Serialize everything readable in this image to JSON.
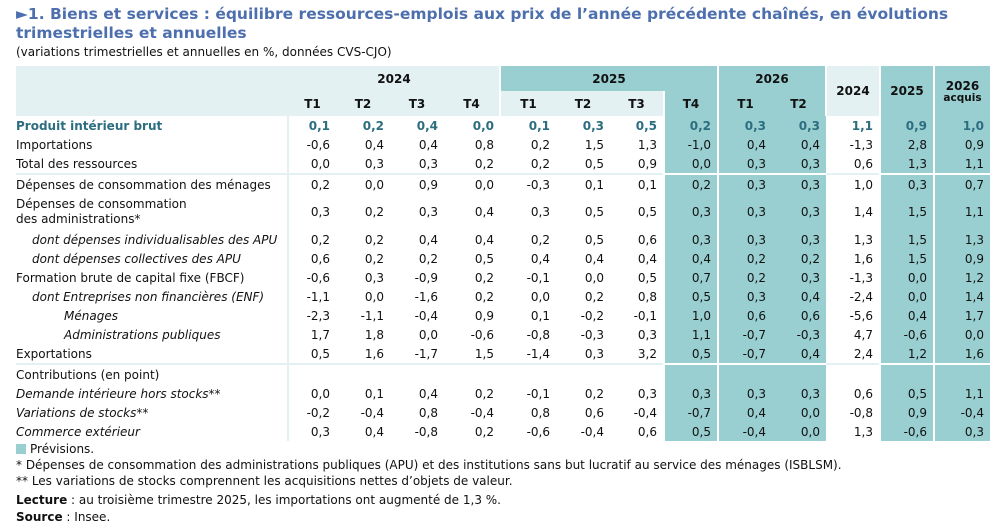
{
  "title": "►1. Biens et services : équilibre ressources-emplois aux prix de l’année précédente chaînés, en évolutions trimestrielles et annuelles",
  "subtitle": "(variations trimestrielles et annuelles en %, données CVS-CJO)",
  "colors": {
    "forecast": "#99cfd1",
    "header": "#e3f1f2",
    "title": "#4d6fae",
    "pib": "#2c6e80"
  },
  "header": {
    "y2024": "2024",
    "y2025": "2025",
    "y2026": "2026",
    "quarters": [
      "T1",
      "T2",
      "T3",
      "T4",
      "T1",
      "T2",
      "T3",
      "T4",
      "T1",
      "T2"
    ],
    "annual": [
      "2024",
      "2025",
      "2026"
    ],
    "acquis": "acquis"
  },
  "rows": [
    {
      "label": "Produit intérieur brut",
      "values": [
        "0,1",
        "0,2",
        "0,4",
        "0,0",
        "0,1",
        "0,3",
        "0,5",
        "0,2",
        "0,3",
        "0,3",
        "1,1",
        "0,9",
        "1,0"
      ]
    },
    {
      "label": "Importations",
      "values": [
        "-0,6",
        "0,4",
        "0,4",
        "0,8",
        "0,2",
        "1,5",
        "1,3",
        "-1,0",
        "0,4",
        "0,4",
        "-1,3",
        "2,8",
        "0,9"
      ]
    },
    {
      "label": "Total des ressources",
      "values": [
        "0,0",
        "0,3",
        "0,3",
        "0,2",
        "0,2",
        "0,5",
        "0,9",
        "0,0",
        "0,3",
        "0,3",
        "0,6",
        "1,3",
        "1,1"
      ]
    },
    {
      "label": "Dépenses de consommation des ménages",
      "values": [
        "0,2",
        "0,0",
        "0,9",
        "0,0",
        "-0,3",
        "0,1",
        "0,1",
        "0,2",
        "0,3",
        "0,3",
        "1,0",
        "0,3",
        "0,7"
      ]
    },
    {
      "label": "Dépenses de consommation",
      "label2": "des administrations*",
      "values": [
        "0,3",
        "0,2",
        "0,3",
        "0,4",
        "0,3",
        "0,5",
        "0,5",
        "0,3",
        "0,3",
        "0,3",
        "1,4",
        "1,5",
        "1,1"
      ]
    },
    {
      "label": "dont dépenses individualisables des APU",
      "values": [
        "0,2",
        "0,2",
        "0,4",
        "0,4",
        "0,2",
        "0,5",
        "0,6",
        "0,3",
        "0,3",
        "0,3",
        "1,3",
        "1,5",
        "1,3"
      ]
    },
    {
      "label": "dont dépenses collectives des APU",
      "values": [
        "0,6",
        "0,2",
        "0,2",
        "0,5",
        "0,4",
        "0,4",
        "0,4",
        "0,4",
        "0,2",
        "0,2",
        "1,6",
        "1,5",
        "0,9"
      ]
    },
    {
      "label": "Formation brute de capital fixe (FBCF)",
      "values": [
        "-0,6",
        "0,3",
        "-0,9",
        "0,2",
        "-0,1",
        "0,0",
        "0,5",
        "0,7",
        "0,2",
        "0,3",
        "-1,3",
        "0,0",
        "1,2"
      ]
    },
    {
      "label": "dont Entreprises non financières (ENF)",
      "values": [
        "-1,1",
        "0,0",
        "-1,6",
        "0,2",
        "0,0",
        "0,2",
        "0,8",
        "0,5",
        "0,3",
        "0,4",
        "-2,4",
        "0,0",
        "1,4"
      ]
    },
    {
      "label": "Ménages",
      "values": [
        "-2,3",
        "-1,1",
        "-0,4",
        "0,9",
        "0,1",
        "-0,2",
        "-0,1",
        "1,0",
        "0,6",
        "0,6",
        "-5,6",
        "0,4",
        "1,7"
      ]
    },
    {
      "label": "Administrations publiques",
      "values": [
        "1,7",
        "1,8",
        "0,0",
        "-0,6",
        "-0,8",
        "-0,3",
        "0,3",
        "1,1",
        "-0,7",
        "-0,3",
        "4,7",
        "-0,6",
        "0,0"
      ]
    },
    {
      "label": "Exportations",
      "values": [
        "0,5",
        "1,6",
        "-1,7",
        "1,5",
        "-1,4",
        "0,3",
        "3,2",
        "0,5",
        "-0,7",
        "0,4",
        "2,4",
        "1,2",
        "1,6"
      ]
    },
    {
      "label": "Contributions (en point)",
      "values": [
        "",
        "",
        "",
        "",
        "",
        "",
        "",
        "",
        "",
        "",
        "",
        "",
        ""
      ]
    },
    {
      "label": "Demande intérieure hors stocks**",
      "values": [
        "0,0",
        "0,1",
        "0,4",
        "0,2",
        "-0,1",
        "0,2",
        "0,3",
        "0,3",
        "0,3",
        "0,3",
        "0,6",
        "0,5",
        "1,1"
      ]
    },
    {
      "label": "Variations de stocks**",
      "values": [
        "-0,2",
        "-0,4",
        "0,8",
        "-0,4",
        "0,8",
        "0,6",
        "-0,4",
        "-0,7",
        "0,4",
        "0,0",
        "-0,8",
        "0,9",
        "-0,4"
      ]
    },
    {
      "label": "Commerce extérieur",
      "values": [
        "0,3",
        "0,4",
        "-0,8",
        "0,2",
        "-0,6",
        "-0,4",
        "0,6",
        "0,5",
        "-0,4",
        "0,0",
        "1,3",
        "-0,6",
        "0,3"
      ]
    }
  ],
  "footer": {
    "legend": "Prévisions.",
    "note1": "* Dépenses de consommation des administrations publiques (APU) et des institutions sans but lucratif au service des ménages (ISBLSM).",
    "note2": "** Les variations de stocks comprennent les acquisitions nettes d’objets de valeur.",
    "reading_label": "Lecture",
    "reading": " : au troisième trimestre 2025, les importations ont augmenté de 1,3 %.",
    "source_label": "Source",
    "source": " : Insee."
  }
}
